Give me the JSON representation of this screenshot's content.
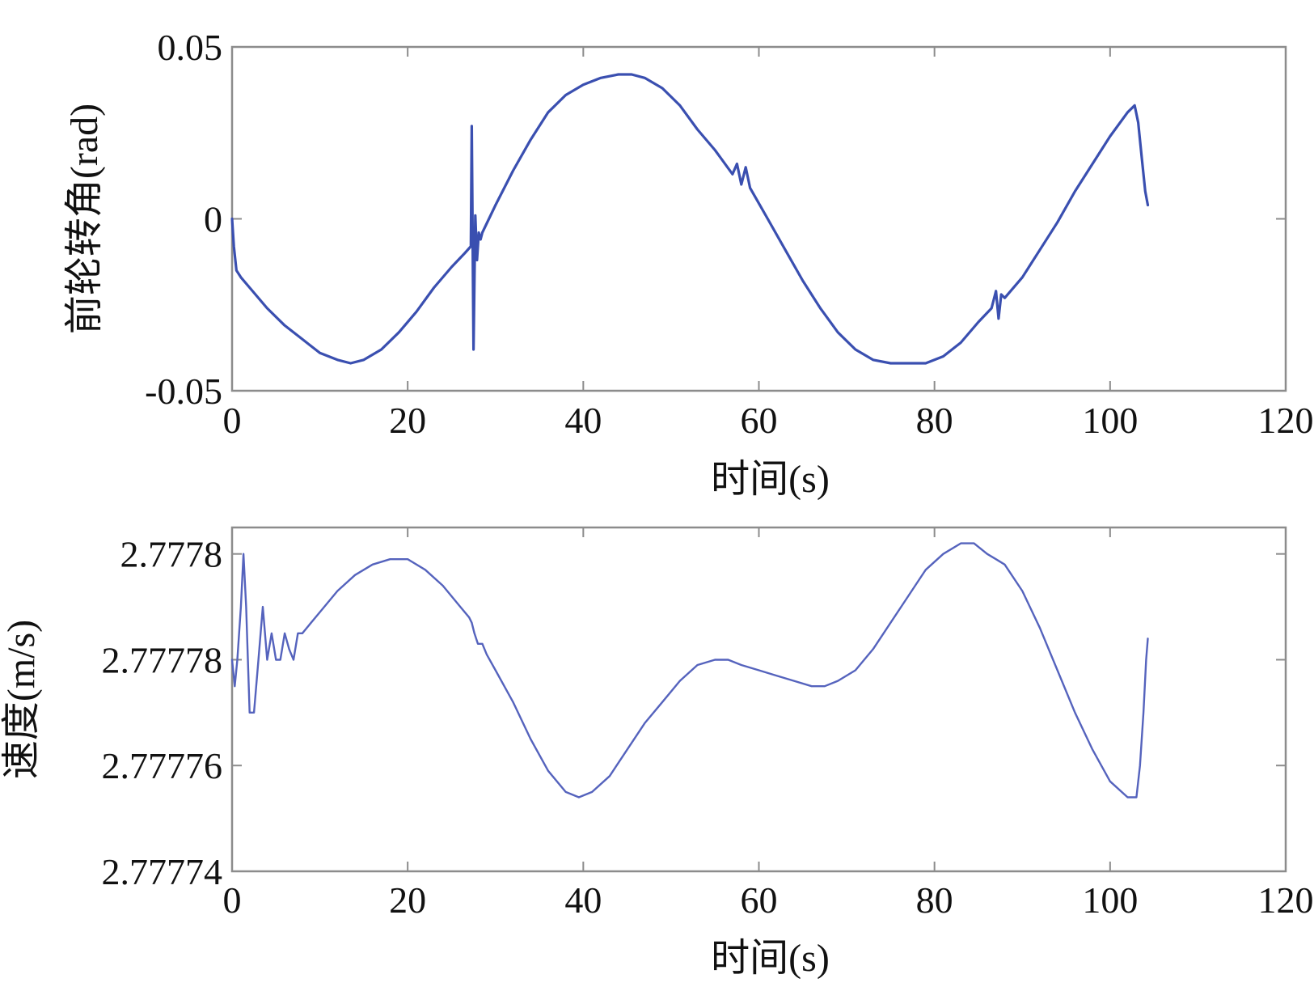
{
  "chart_data": [
    {
      "type": "line",
      "xlabel": "时间(s)",
      "ylabel": "前轮转角(rad)",
      "xlim": [
        0,
        120
      ],
      "ylim": [
        -0.05,
        0.05
      ],
      "xticks": [
        0,
        20,
        40,
        60,
        80,
        100,
        120
      ],
      "xtick_labels": [
        "0",
        "20",
        "40",
        "60",
        "80",
        "100",
        "120"
      ],
      "yticks": [
        -0.05,
        0,
        0.05
      ],
      "ytick_labels": [
        "-0.05",
        "0",
        "0.05"
      ],
      "grid": false,
      "color": "#3a4fb0",
      "series": [
        {
          "x": [
            0,
            0.2,
            0.5,
            1,
            2,
            4,
            6,
            8,
            10,
            12,
            13.5,
            15,
            17,
            19,
            21,
            23,
            25,
            26.5,
            27.2,
            27.3,
            27.5,
            27.7,
            27.9,
            28.1,
            28.3,
            28.5,
            30,
            32,
            34,
            36,
            38,
            40,
            42,
            44,
            45.5,
            47,
            49,
            51,
            53,
            55,
            57,
            57.5,
            58,
            58.5,
            59,
            61,
            63,
            65,
            67,
            69,
            71,
            73,
            75,
            77,
            78,
            79,
            81,
            83,
            85,
            86.5,
            87,
            87.3,
            87.6,
            88,
            90,
            92,
            94,
            96,
            98,
            100,
            102,
            102.8,
            103.2,
            103.6,
            104,
            104.3
          ],
          "y": [
            0,
            -0.008,
            -0.015,
            -0.017,
            -0.02,
            -0.026,
            -0.031,
            -0.035,
            -0.039,
            -0.041,
            -0.042,
            -0.041,
            -0.038,
            -0.033,
            -0.027,
            -0.02,
            -0.014,
            -0.01,
            -0.008,
            0.027,
            -0.038,
            0.001,
            -0.012,
            -0.004,
            -0.006,
            -0.004,
            0.004,
            0.014,
            0.023,
            0.031,
            0.036,
            0.039,
            0.041,
            0.042,
            0.042,
            0.041,
            0.038,
            0.033,
            0.026,
            0.02,
            0.013,
            0.016,
            0.01,
            0.015,
            0.009,
            0.0,
            -0.009,
            -0.018,
            -0.026,
            -0.033,
            -0.038,
            -0.041,
            -0.042,
            -0.042,
            -0.042,
            -0.042,
            -0.04,
            -0.036,
            -0.03,
            -0.026,
            -0.021,
            -0.029,
            -0.022,
            -0.023,
            -0.017,
            -0.009,
            -0.001,
            0.008,
            0.016,
            0.024,
            0.031,
            0.033,
            0.028,
            0.018,
            0.008,
            0.004
          ]
        }
      ]
    },
    {
      "type": "line",
      "xlabel": "时间(s)",
      "ylabel": "速度(m/s)",
      "xlim": [
        0,
        120
      ],
      "ylim": [
        2.77774,
        2.777805
      ],
      "xticks": [
        0,
        20,
        40,
        60,
        80,
        100,
        120
      ],
      "xtick_labels": [
        "0",
        "20",
        "40",
        "60",
        "80",
        "100",
        "120"
      ],
      "yticks": [
        2.77774,
        2.77776,
        2.77778,
        2.7778
      ],
      "ytick_labels": [
        "2.77774",
        "2.77776",
        "2.77778",
        "2.7778"
      ],
      "grid": false,
      "color": "#5563bd",
      "series": [
        {
          "x": [
            0,
            0.3,
            0.6,
            1,
            1.3,
            1.6,
            2,
            2.5,
            3,
            3.5,
            4,
            4.5,
            5,
            5.5,
            6,
            6.5,
            7,
            7.5,
            8,
            9,
            10,
            12,
            14,
            16,
            18,
            19,
            20,
            22,
            24,
            26,
            27,
            27.3,
            27.6,
            28,
            28.5,
            29,
            30,
            32,
            34,
            36,
            38,
            39.5,
            41,
            43,
            45,
            47,
            49,
            51,
            53,
            55,
            56.5,
            58,
            60,
            62,
            64,
            66,
            67.5,
            69,
            71,
            73,
            75,
            77,
            79,
            81,
            83,
            84.5,
            86,
            87,
            88,
            90,
            92,
            94,
            96,
            98,
            100,
            102,
            103,
            103.4,
            103.8,
            104.1,
            104.3
          ],
          "y": [
            2.77778,
            2.777775,
            2.77778,
            2.77779,
            2.7778,
            2.77779,
            2.77777,
            2.77777,
            2.77778,
            2.77779,
            2.77778,
            2.777785,
            2.77778,
            2.77778,
            2.777785,
            2.777782,
            2.77778,
            2.777785,
            2.777785,
            2.777787,
            2.777789,
            2.777793,
            2.777796,
            2.777798,
            2.777799,
            2.777799,
            2.777799,
            2.777797,
            2.777794,
            2.77779,
            2.777788,
            2.777787,
            2.777785,
            2.777783,
            2.777783,
            2.777781,
            2.777778,
            2.777772,
            2.777765,
            2.777759,
            2.777755,
            2.777754,
            2.777755,
            2.777758,
            2.777763,
            2.777768,
            2.777772,
            2.777776,
            2.777779,
            2.77778,
            2.77778,
            2.777779,
            2.777778,
            2.777777,
            2.777776,
            2.777775,
            2.777775,
            2.777776,
            2.777778,
            2.777782,
            2.777787,
            2.777792,
            2.777797,
            2.7778,
            2.777802,
            2.777802,
            2.7778,
            2.777799,
            2.777798,
            2.777793,
            2.777786,
            2.777778,
            2.77777,
            2.777763,
            2.777757,
            2.777754,
            2.777754,
            2.77776,
            2.77777,
            2.77778,
            2.777784
          ]
        }
      ]
    }
  ]
}
